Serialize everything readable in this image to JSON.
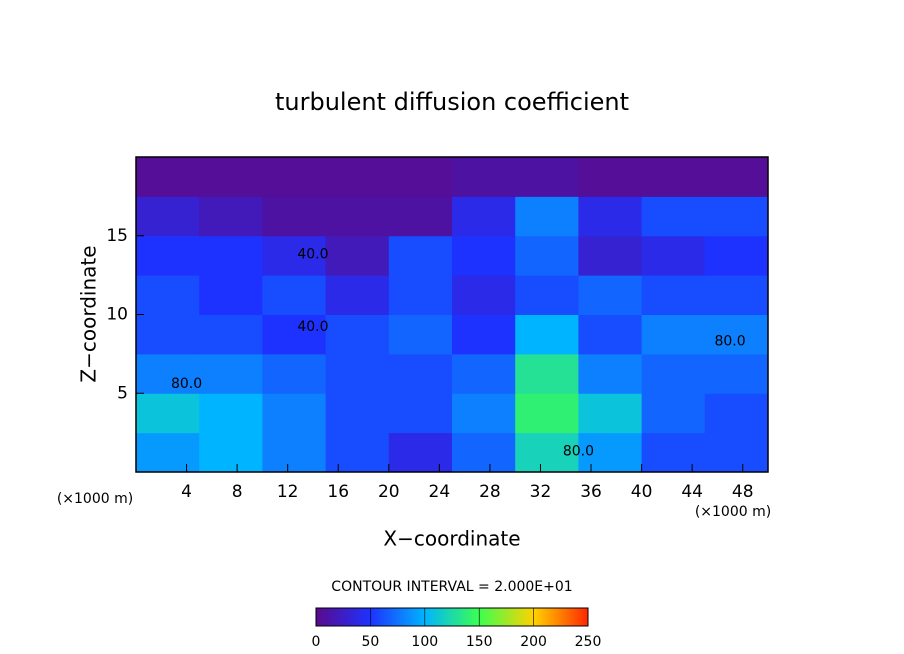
{
  "chart_data": {
    "type": "heatmap",
    "title": "turbulent diffusion coefficient",
    "x_label": "X−coordinate",
    "y_label": "Z−coordinate",
    "x_unit": "(×1000 m)",
    "y_unit": "(×1000 m)",
    "subtitle": "CONTOUR INTERVAL = 2.000E+01",
    "x": [
      2.5,
      7.5,
      12.5,
      17.5,
      22.5,
      27.5,
      32.5,
      37.5,
      42.5,
      47.5
    ],
    "y": [
      1.25,
      3.75,
      6.25,
      8.75,
      11.25,
      13.75,
      16.25,
      18.75
    ],
    "z": [
      [
        90,
        100,
        80,
        60,
        40,
        70,
        120,
        90,
        60,
        60
      ],
      [
        110,
        100,
        80,
        60,
        60,
        80,
        140,
        110,
        70,
        60
      ],
      [
        80,
        80,
        70,
        60,
        60,
        70,
        130,
        80,
        70,
        70
      ],
      [
        60,
        60,
        50,
        60,
        70,
        50,
        100,
        60,
        80,
        80
      ],
      [
        60,
        50,
        60,
        40,
        60,
        40,
        60,
        70,
        60,
        60
      ],
      [
        50,
        50,
        40,
        20,
        60,
        50,
        70,
        30,
        40,
        50
      ],
      [
        30,
        20,
        10,
        10,
        10,
        40,
        80,
        40,
        60,
        60
      ],
      [
        5,
        5,
        5,
        5,
        5,
        10,
        10,
        5,
        5,
        5
      ]
    ],
    "xlim": [
      0,
      50
    ],
    "ylim": [
      0,
      20
    ],
    "xticks": [
      4,
      8,
      12,
      16,
      20,
      24,
      28,
      32,
      36,
      40,
      44,
      48
    ],
    "yticks": [
      5,
      10,
      15
    ],
    "zlim": [
      0,
      250
    ],
    "colorbar_ticks": [
      0,
      50,
      100,
      150,
      200,
      250
    ],
    "colormap": [
      "#5a0a8c",
      "#1e32ff",
      "#00b4ff",
      "#3cff50",
      "#ffd200",
      "#ff2800"
    ],
    "annotations": [
      {
        "text": "40.0",
        "x": 14,
        "y": 13.8
      },
      {
        "text": "40.0",
        "x": 14,
        "y": 9.2
      },
      {
        "text": "80.0",
        "x": 4,
        "y": 5.6
      },
      {
        "text": "80.0",
        "x": 35,
        "y": 1.3
      },
      {
        "text": "80.0",
        "x": 47,
        "y": 8.3
      }
    ]
  }
}
